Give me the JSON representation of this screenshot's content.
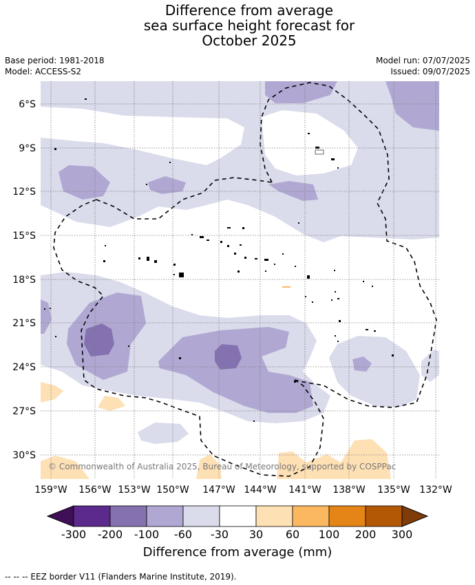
{
  "title": {
    "line1": "Difference from average",
    "line2": "sea surface height forecast for",
    "line3": "October 2025"
  },
  "meta": {
    "base_period": "Base period: 1981-2018",
    "model": "Model: ACCESS-S2",
    "model_run": "Model run: 07/07/2025",
    "issued": "Issued: 09/07/2025"
  },
  "map": {
    "copyright": "© Commonwealth of Australia 2025, Bureau of Meteorology, supported by COSPPac",
    "lon_labels": [
      "159°W",
      "156°W",
      "153°W",
      "150°W",
      "147°W",
      "144°W",
      "141°W",
      "138°W",
      "135°W",
      "132°W"
    ],
    "lat_labels": [
      "6°S",
      "9°S",
      "12°S",
      "15°S",
      "18°S",
      "21°S",
      "24°S",
      "27°S",
      "30°S"
    ],
    "eez_line_style": "dashed"
  },
  "colorbar": {
    "title": "Difference from average (mm)",
    "ticks": [
      "-300",
      "-200",
      "-100",
      "-60",
      "-30",
      "30",
      "60",
      "100",
      "200",
      "300"
    ],
    "colors": {
      "below_min": "#3f0f58",
      "bins": [
        "#5c2a8c",
        "#8472b0",
        "#b0a8d2",
        "#dadbeb",
        "#ffffff",
        "#fee0b5",
        "#fbb861",
        "#e58417",
        "#b35906"
      ],
      "above_max": "#7f3b08"
    }
  },
  "legend_colors": {
    "lightest_purple": "#dadbeb",
    "light_purple": "#b0a8d2",
    "mid_purple": "#8472b0",
    "light_orange": "#fee0b5"
  },
  "footer": "--  --  -- EEZ border V11 (Flanders Marine Institute, 2019)."
}
